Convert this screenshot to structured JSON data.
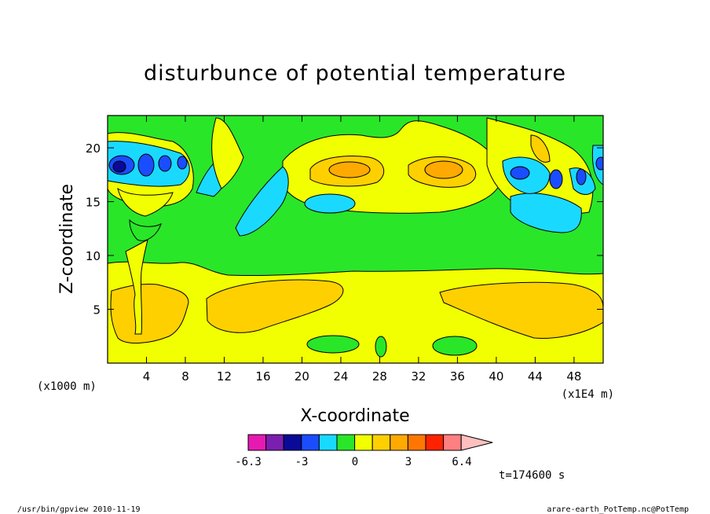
{
  "chart_data": {
    "type": "heatmap",
    "title": "disturbunce of potential temperature",
    "xlabel": "X-coordinate",
    "ylabel": "Z-coordinate",
    "x_unit_left": "(x1000 m)",
    "x_unit_right": "(x1E4 m)",
    "xlim": [
      0,
      51
    ],
    "ylim": [
      0,
      23
    ],
    "x_ticks": [
      "4",
      "8",
      "12",
      "16",
      "20",
      "24",
      "28",
      "32",
      "36",
      "40",
      "44",
      "48"
    ],
    "y_ticks": [
      "5",
      "10",
      "15",
      "20"
    ],
    "colorbar": {
      "colors": [
        "#e619b3",
        "#7a1fb0",
        "#0a0a99",
        "#1a4dff",
        "#1ad9ff",
        "#29e629",
        "#f2ff00",
        "#ffd000",
        "#ffaa00",
        "#ff7700",
        "#ff2200",
        "#ff8080",
        "#ffbfbf"
      ],
      "labels": [
        "-6.3",
        "-3",
        "0",
        "3",
        "6.4"
      ]
    },
    "regions": [
      {
        "name": "lower warm layer",
        "level": "yellow",
        "x": [
          0,
          51
        ],
        "y": [
          0.5,
          9
        ]
      },
      {
        "name": "left low-level warm pool",
        "level": "orange",
        "x": [
          12,
          25
        ],
        "y": [
          2.5,
          7
        ]
      },
      {
        "name": "right low-level warm pool",
        "level": "orange",
        "x": [
          34,
          51
        ],
        "y": [
          3,
          7
        ]
      },
      {
        "name": "upper warm anomaly left",
        "level": "dark-orange",
        "x": [
          22,
          28
        ],
        "y": [
          17,
          19
        ]
      },
      {
        "name": "upper warm anomaly right",
        "level": "dark-orange",
        "x": [
          32,
          37
        ],
        "y": [
          17,
          19
        ]
      },
      {
        "name": "near-surface cool cell left",
        "level": "green",
        "x": [
          21,
          26
        ],
        "y": [
          1,
          2.5
        ]
      },
      {
        "name": "near-surface cool cell right",
        "level": "green",
        "x": [
          33,
          38
        ],
        "y": [
          1,
          2.5
        ]
      },
      {
        "name": "upper cool pocket",
        "level": "cyan",
        "x": [
          20,
          25
        ],
        "y": [
          13.5,
          15
        ]
      },
      {
        "name": "left wave train",
        "level": "blue",
        "x": [
          0,
          9
        ],
        "y": [
          15,
          21
        ]
      },
      {
        "name": "right wave train",
        "level": "blue",
        "x": [
          40,
          51
        ],
        "y": [
          13,
          21
        ]
      }
    ],
    "time_label": "t=174600 s"
  },
  "footer": {
    "left": "/usr/bin/gpview  2010-11-19",
    "right": "arare-earth_PotTemp.nc@PotTemp"
  }
}
